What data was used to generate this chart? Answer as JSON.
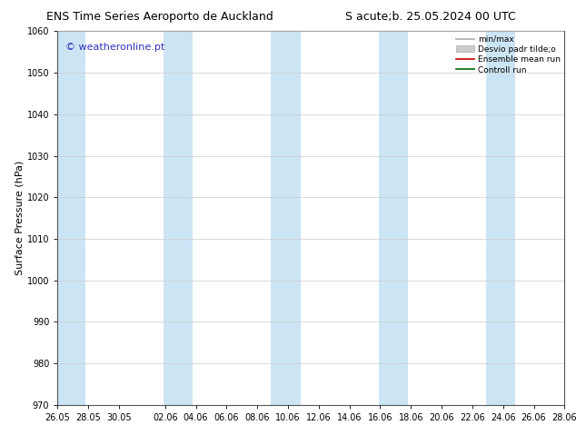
{
  "title_left": "ENS Time Series Aeroporto de Auckland",
  "title_right": "S acute;b. 25.05.2024 00 UTC",
  "ylabel": "Surface Pressure (hPa)",
  "ylim": [
    970,
    1060
  ],
  "yticks": [
    970,
    980,
    990,
    1000,
    1010,
    1020,
    1030,
    1040,
    1050,
    1060
  ],
  "watermark": "© weatheronline.pt",
  "watermark_color": "#3333bb",
  "bg_color": "#ffffff",
  "plot_bg_color": "#ffffff",
  "shaded_band_color": "#cce5f5",
  "shaded_band_alpha": 1.0,
  "legend_entries": [
    "min/max",
    "Desvio padr tilde;o",
    "Ensemble mean run",
    "Controll run"
  ],
  "grid_color": "#cccccc",
  "tick_font_size": 7,
  "title_font_size": 9,
  "ylabel_font_size": 8,
  "watermark_font_size": 8
}
